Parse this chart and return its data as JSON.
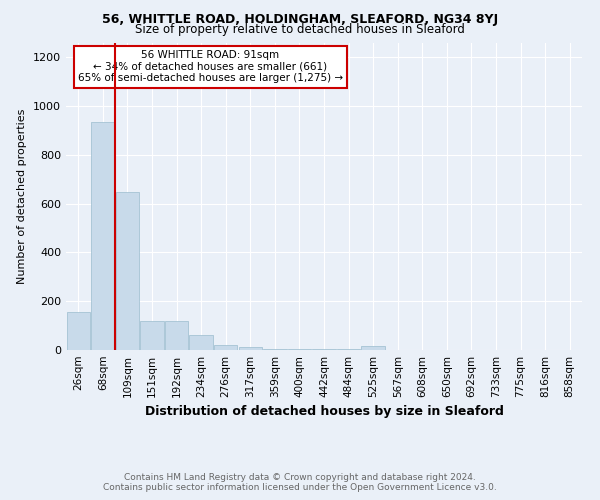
{
  "title1": "56, WHITTLE ROAD, HOLDINGHAM, SLEAFORD, NG34 8YJ",
  "title2": "Size of property relative to detached houses in Sleaford",
  "xlabel": "Distribution of detached houses by size in Sleaford",
  "ylabel": "Number of detached properties",
  "footer1": "Contains HM Land Registry data © Crown copyright and database right 2024.",
  "footer2": "Contains public sector information licensed under the Open Government Licence v3.0.",
  "annotation_line1": "56 WHITTLE ROAD: 91sqm",
  "annotation_line2": "← 34% of detached houses are smaller (661)",
  "annotation_line3": "65% of semi-detached houses are larger (1,275) →",
  "bar_color": "#c8daea",
  "bar_edge_color": "#9bbcce",
  "vline_color": "#cc0000",
  "vline_x_index": 2,
  "categories": [
    "26sqm",
    "68sqm",
    "109sqm",
    "151sqm",
    "192sqm",
    "234sqm",
    "276sqm",
    "317sqm",
    "359sqm",
    "400sqm",
    "442sqm",
    "484sqm",
    "525sqm",
    "567sqm",
    "608sqm",
    "650sqm",
    "692sqm",
    "733sqm",
    "775sqm",
    "816sqm",
    "858sqm"
  ],
  "values": [
    155,
    935,
    648,
    120,
    120,
    60,
    20,
    12,
    5,
    5,
    5,
    5,
    18,
    0,
    0,
    0,
    0,
    0,
    0,
    0,
    0
  ],
  "ylim": [
    0,
    1260
  ],
  "yticks": [
    0,
    200,
    400,
    600,
    800,
    1000,
    1200
  ],
  "background_color": "#eaf0f8",
  "plot_bg_color": "#eaf0f8",
  "grid_color": "#ffffff",
  "annotation_box_facecolor": "#ffffff",
  "annotation_box_edgecolor": "#cc0000",
  "title_fontsize": 9,
  "subtitle_fontsize": 8.5,
  "xlabel_fontsize": 9,
  "ylabel_fontsize": 8,
  "tick_fontsize": 7.5,
  "ytick_fontsize": 8,
  "footer_fontsize": 6.5,
  "footer_color": "#666666"
}
